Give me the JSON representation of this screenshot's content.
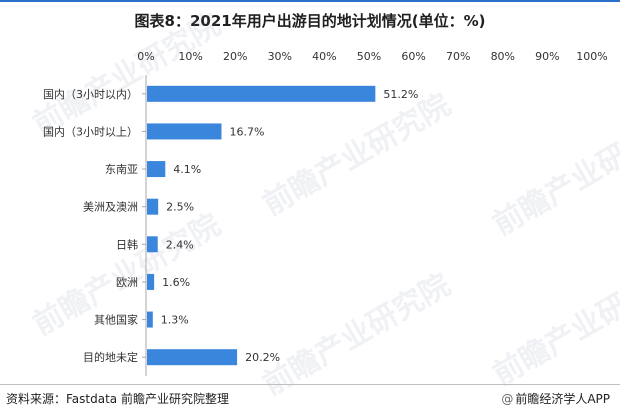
{
  "title": "图表8：2021年用户出游目的地计划情况(单位：%)",
  "footer": {
    "source": "资料来源：Fastdata 前瞻产业研究院整理",
    "brand_mark": "@",
    "brand": "前瞻经济学人APP"
  },
  "watermark": "前瞻产业研究院",
  "colors": {
    "bar": "#3b86dd",
    "title_rule": "#2a6fc9",
    "axis": "#aaaaaa"
  },
  "chart_data": {
    "type": "bar",
    "orientation": "horizontal",
    "categories": [
      "国内（3小时以内）",
      "国内（3小时以上）",
      "东南亚",
      "美洲及澳洲",
      "日韩",
      "欧洲",
      "其他国家",
      "目的地未定"
    ],
    "values": [
      51.2,
      16.7,
      4.1,
      2.5,
      2.4,
      1.6,
      1.3,
      20.2
    ],
    "data_labels": [
      "51.2%",
      "16.7%",
      "4.1%",
      "2.5%",
      "2.4%",
      "1.6%",
      "1.3%",
      "20.2%"
    ],
    "xlim": [
      0,
      100
    ],
    "xticks": [
      0,
      10,
      20,
      30,
      40,
      50,
      60,
      70,
      80,
      90,
      100
    ],
    "xtick_labels": [
      "0%",
      "10%",
      "20%",
      "30%",
      "40%",
      "50%",
      "60%",
      "70%",
      "80%",
      "90%",
      "100%"
    ],
    "x_axis_position": "top",
    "grid": false,
    "legend": "none"
  }
}
